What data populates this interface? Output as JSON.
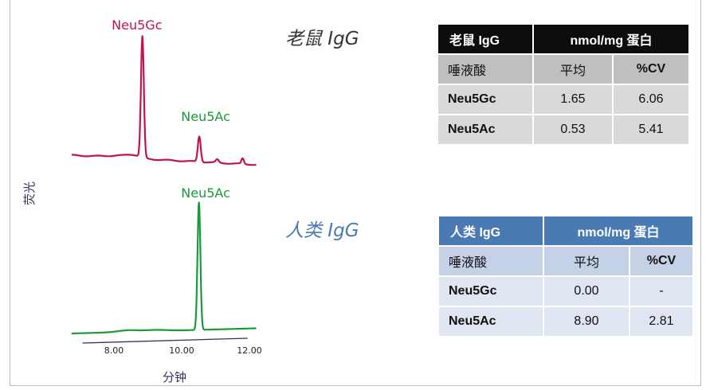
{
  "chart_data": {
    "type": "line",
    "xlabel": "分钟",
    "ylabel": "荧光",
    "x_ticks": [
      "8.00",
      "10.00",
      "12.00"
    ],
    "xlim": [
      6.6,
      12.3
    ],
    "colors": {
      "rat": "#c0144e",
      "human": "#1a9a3c",
      "axis": "#3a2d5a"
    },
    "series": [
      {
        "name": "老鼠 IgG",
        "peaks": [
          {
            "label": "Neu5Gc",
            "x": 8.82
          },
          {
            "label": "Neu5Ac",
            "x": 10.52
          }
        ]
      },
      {
        "name": "人类 IgG",
        "peaks": [
          {
            "label": "Neu5Ac",
            "x": 10.52
          }
        ]
      }
    ]
  },
  "rat_panel": {
    "title": "老鼠 IgG",
    "table": {
      "header": [
        "老鼠 IgG",
        "nmol/mg 蛋白"
      ],
      "subheader": [
        "唾液酸",
        "平均",
        "%CV"
      ],
      "rows": [
        [
          "Neu5Gc",
          "1.65",
          "6.06"
        ],
        [
          "Neu5Ac",
          "0.53",
          "5.41"
        ]
      ]
    }
  },
  "human_panel": {
    "title": "人类 IgG",
    "table": {
      "header": [
        "人类 IgG",
        "nmol/mg 蛋白"
      ],
      "subheader": [
        "唾液酸",
        "平均",
        "%CV"
      ],
      "rows": [
        [
          "Neu5Gc",
          "0.00",
          "-"
        ],
        [
          "Neu5Ac",
          "8.90",
          "2.81"
        ]
      ]
    }
  }
}
